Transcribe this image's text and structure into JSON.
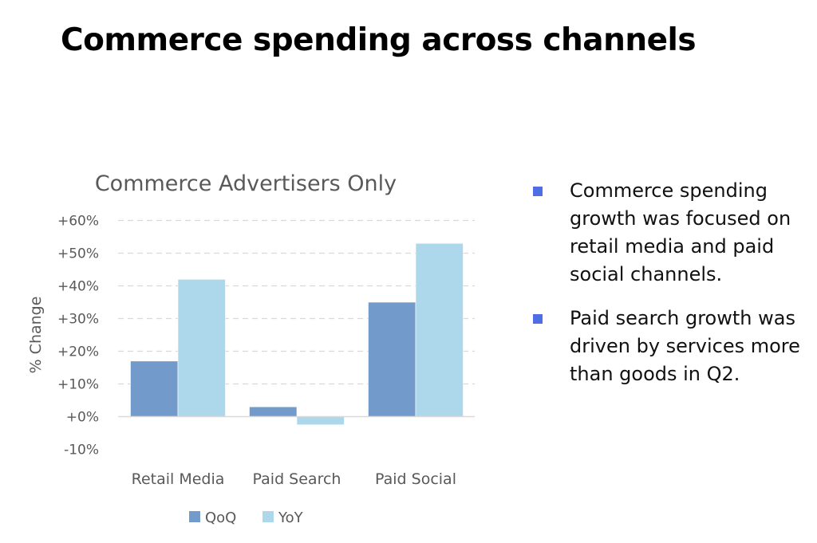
{
  "title": "Commerce spending across channels",
  "chart_data": {
    "type": "bar",
    "title": "Commerce Advertisers Only",
    "xlabel": "",
    "ylabel": "% Change",
    "ylim": [
      -10,
      60
    ],
    "yticks": [
      -10,
      0,
      10,
      20,
      30,
      40,
      50,
      60
    ],
    "ytick_labels": [
      "-10%",
      "+0%",
      "+10%",
      "+20%",
      "+30%",
      "+40%",
      "+50%",
      "+60%"
    ],
    "categories": [
      "Retail Media",
      "Paid Search",
      "Paid Social"
    ],
    "series": [
      {
        "name": "QoQ",
        "values": [
          17,
          3,
          35
        ],
        "color": "#729bcc"
      },
      {
        "name": "YoY",
        "values": [
          42,
          -2.5,
          53
        ],
        "color": "#add8ec"
      }
    ],
    "grid": true,
    "legend": "bottom"
  },
  "bullets": [
    "Commerce spending growth was focused on retail media and paid social channels.",
    "Paid search growth was driven by services more than goods in Q2."
  ]
}
